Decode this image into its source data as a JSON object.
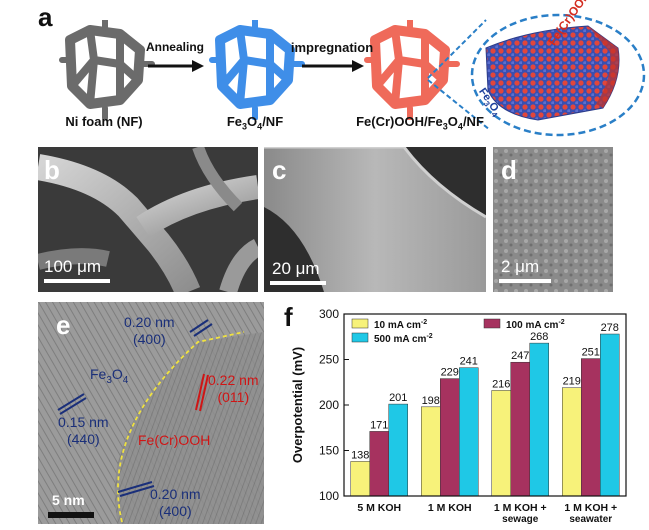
{
  "panel_a": {
    "letter": "a",
    "step1_label": "Ni foam (NF)",
    "arrow1_label": "Annealing",
    "step2_label_main": "Fe",
    "step2_label_sub": "3",
    "step2_label_main2": "O",
    "step2_label_sub2": "4",
    "step2_label_tail": "/NF",
    "arrow2_label": "impregnation",
    "step3_label_pre": "Fe(Cr)OOH/Fe",
    "step3_label_sub": "3",
    "step3_label_mid": "O",
    "step3_label_sub2": "4",
    "step3_label_tail": "/NF",
    "zoom_top_label": "Fe(Cr)OOH",
    "zoom_bottom_pre": "Fe",
    "zoom_bottom_sub": "3",
    "zoom_bottom_mid": "O",
    "zoom_bottom_sub2": "4",
    "colors": {
      "nf": "#6b6b6b",
      "fe3o4": "#3f8ee8",
      "fecroOH": "#ef6a5a",
      "zoom_ring": "#2a7fc7"
    }
  },
  "panel_b": {
    "letter": "b",
    "scale": "100 μm"
  },
  "panel_c": {
    "letter": "c",
    "scale": "20 μm"
  },
  "panel_d": {
    "letter": "d",
    "scale": "2 μm"
  },
  "panel_e": {
    "letter": "e",
    "scale": "5 nm",
    "annotations": [
      {
        "line1": "0.20 nm",
        "line2": "(400)",
        "color": "#1a2f7a"
      },
      {
        "line1": "0.15 nm",
        "line2": "(440)",
        "color": "#1a2f7a"
      },
      {
        "line1": "0.22 nm",
        "line2": "(011)",
        "color": "#d01515"
      },
      {
        "line1": "0.20 nm",
        "line2": "(400)",
        "color": "#1a2f7a"
      }
    ],
    "phase1_pre": "Fe",
    "phase1_sub": "3",
    "phase1_mid": "O",
    "phase1_sub2": "4",
    "phase2": "Fe(Cr)OOH"
  },
  "panel_f": {
    "letter": "f"
  },
  "chart_data": {
    "type": "bar",
    "ylabel": "Overpotential (mV)",
    "xlabel": "",
    "ylim": [
      100,
      300
    ],
    "yticks": [
      100,
      150,
      200,
      250,
      300
    ],
    "categories": [
      [
        "5 M KOH"
      ],
      [
        "1 M KOH"
      ],
      [
        "1 M KOH +",
        "sewage"
      ],
      [
        "1 M KOH +",
        "seawater"
      ]
    ],
    "series": [
      {
        "name_main": "10 mA cm",
        "name_sup": "-2",
        "color": "#f7f27a",
        "values": [
          138,
          198,
          216,
          219
        ]
      },
      {
        "name_main": "100 mA cm",
        "name_sup": "-2",
        "color": "#a6325f",
        "values": [
          171,
          229,
          247,
          251
        ]
      },
      {
        "name_main": "500 mA cm",
        "name_sup": "-2",
        "color": "#1fc8e6",
        "values": [
          201,
          241,
          268,
          278
        ]
      }
    ],
    "legend_placement": "top-left"
  }
}
